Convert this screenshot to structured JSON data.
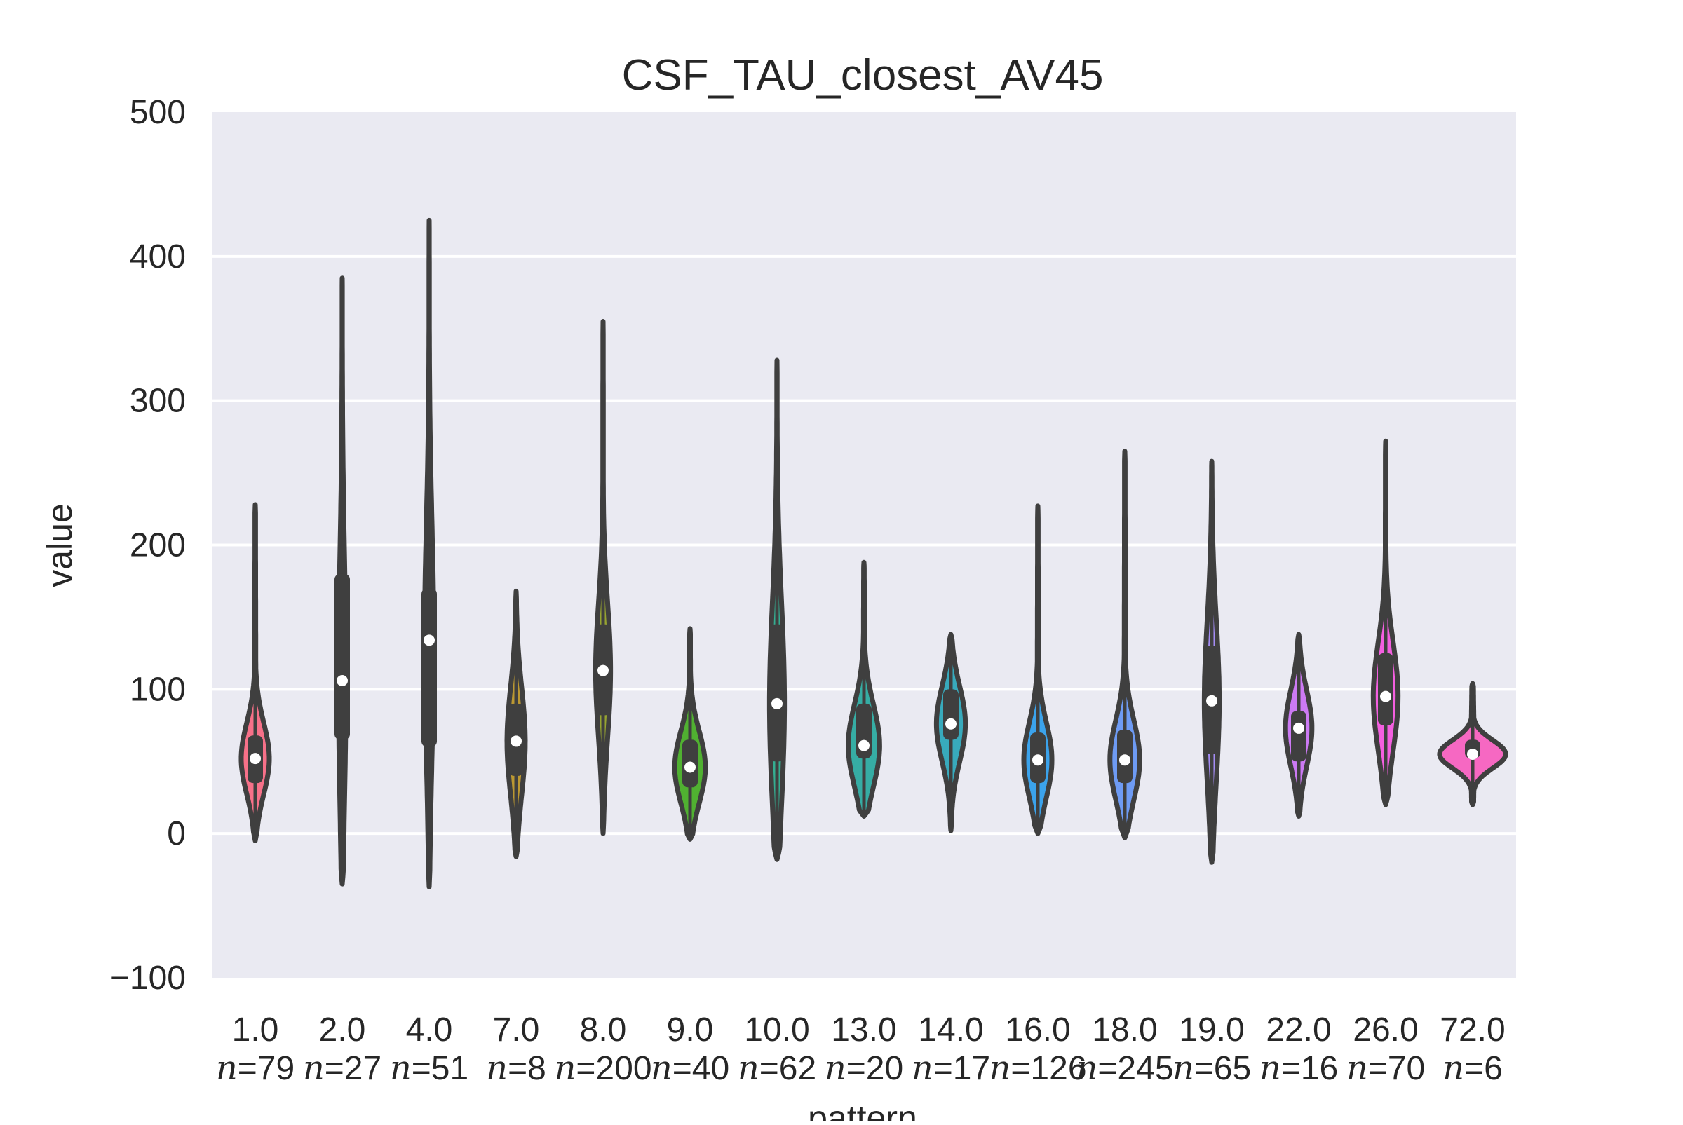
{
  "chart_data": {
    "type": "violin",
    "title": "CSF_TAU_closest_AV45",
    "xlabel": "pattern",
    "ylabel": "value",
    "ylim": [
      -100,
      500
    ],
    "yticks": [
      -100,
      0,
      100,
      200,
      300,
      400,
      500
    ],
    "ytick_labels": [
      "−100",
      "0",
      "100",
      "200",
      "300",
      "400",
      "500"
    ],
    "grid": true,
    "categories": [
      {
        "label": "1.0",
        "n_label": "=79",
        "color": "#f77189",
        "min": -5,
        "max": 228,
        "median": 52,
        "q1": 35,
        "q3": 68,
        "width": 0.34
      },
      {
        "label": "2.0",
        "n_label": "=27",
        "color": "#f7754f",
        "min": -35,
        "max": 385,
        "median": 106,
        "q1": 65,
        "q3": 180,
        "width": 0.09
      },
      {
        "label": "4.0",
        "n_label": "=51",
        "color": "#dd8a31",
        "min": -37,
        "max": 425,
        "median": 134,
        "q1": 60,
        "q3": 170,
        "width": 0.11
      },
      {
        "label": "7.0",
        "n_label": "=8",
        "color": "#bb9832",
        "min": -16,
        "max": 168,
        "median": 64,
        "q1": 40,
        "q3": 90,
        "width": 0.22
      },
      {
        "label": "8.0",
        "n_label": "=200",
        "color": "#97a431",
        "min": 0,
        "max": 355,
        "median": 113,
        "q1": 82,
        "q3": 145,
        "width": 0.18
      },
      {
        "label": "9.0",
        "n_label": "=40",
        "color": "#50b131",
        "min": -4,
        "max": 142,
        "median": 46,
        "q1": 32,
        "q3": 65,
        "width": 0.37
      },
      {
        "label": "10.0",
        "n_label": "=62",
        "color": "#34ae91",
        "min": -18,
        "max": 328,
        "median": 90,
        "q1": 50,
        "q3": 145,
        "width": 0.18
      },
      {
        "label": "13.0",
        "n_label": "=20",
        "color": "#36ada4",
        "min": 12,
        "max": 188,
        "median": 61,
        "q1": 52,
        "q3": 90,
        "width": 0.38
      },
      {
        "label": "14.0",
        "n_label": "=17",
        "color": "#38aabc",
        "min": 2,
        "max": 138,
        "median": 76,
        "q1": 65,
        "q3": 100,
        "width": 0.35
      },
      {
        "label": "16.0",
        "n_label": "=126",
        "color": "#3ba3ec",
        "min": 0,
        "max": 227,
        "median": 51,
        "q1": 35,
        "q3": 70,
        "width": 0.34
      },
      {
        "label": "18.0",
        "n_label": "=245",
        "color": "#6e9bf4",
        "min": -3,
        "max": 265,
        "median": 51,
        "q1": 35,
        "q3": 72,
        "width": 0.36
      },
      {
        "label": "19.0",
        "n_label": "=65",
        "color": "#a48cf4",
        "min": -20,
        "max": 258,
        "median": 92,
        "q1": 55,
        "q3": 130,
        "width": 0.18
      },
      {
        "label": "22.0",
        "n_label": "=16",
        "color": "#cc7af4",
        "min": 12,
        "max": 138,
        "median": 73,
        "q1": 50,
        "q3": 85,
        "width": 0.32
      },
      {
        "label": "26.0",
        "n_label": "=70",
        "color": "#f45fe0",
        "min": 20,
        "max": 272,
        "median": 95,
        "q1": 75,
        "q3": 125,
        "width": 0.3
      },
      {
        "label": "72.0",
        "n_label": "=6",
        "color": "#f668c2",
        "min": 20,
        "max": 104,
        "median": 55,
        "q1": 52,
        "q3": 65,
        "width": 0.8
      }
    ]
  }
}
